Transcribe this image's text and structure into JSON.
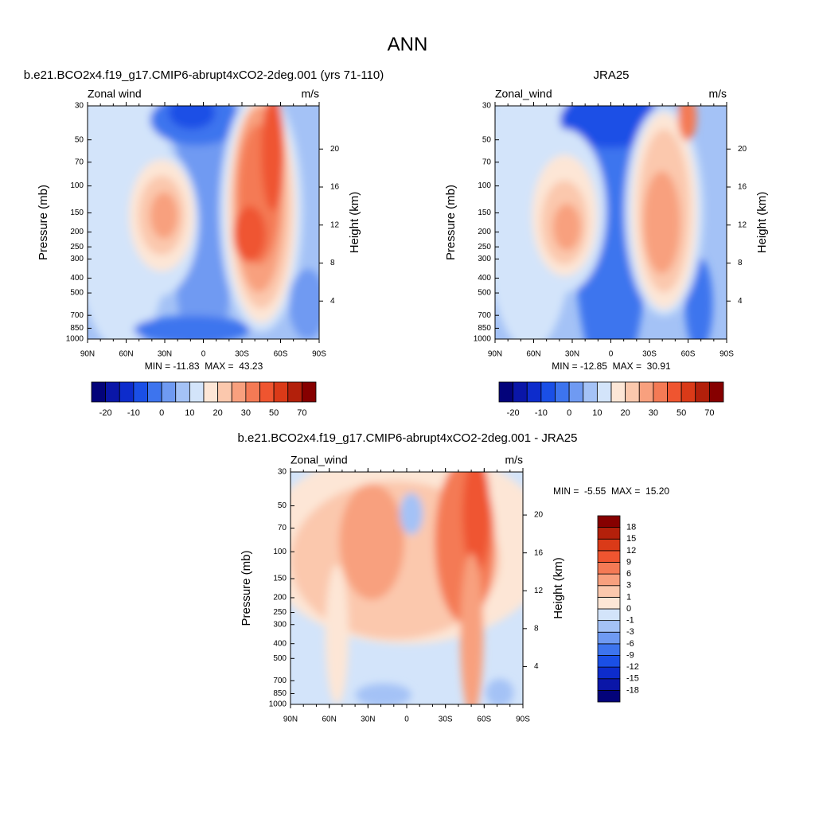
{
  "title": "ANN",
  "chart_data": [
    {
      "type": "contour",
      "title": "b.e21.BCO2x4.f19_g17.CMIP6-abrupt4xCO2-2deg.001 (yrs 71-110)",
      "left_title": "Zonal wind",
      "units": "m/s",
      "ylabel": "Pressure (mb)",
      "y2label": "Height (km)",
      "log_y": true,
      "ylim": [
        1000,
        30
      ],
      "yticks": [
        30,
        50,
        70,
        100,
        150,
        200,
        250,
        300,
        400,
        500,
        700,
        850,
        1000
      ],
      "y2ticks": [
        4,
        8,
        12,
        16,
        20
      ],
      "xlim": [
        90,
        -90
      ],
      "xticks": [
        {
          "value": 90,
          "label": "90N"
        },
        {
          "value": 60,
          "label": "60N"
        },
        {
          "value": 30,
          "label": "30N"
        },
        0,
        {
          "value": -30,
          "label": "30S"
        },
        {
          "value": -60,
          "label": "60S"
        },
        {
          "value": -90,
          "label": "90S"
        }
      ],
      "stats": "MIN = -11.83  MAX =  43.23",
      "colorbar": {
        "orientation": "horizontal",
        "levels": [
          -20,
          -10,
          0,
          10,
          20,
          30,
          50,
          70
        ],
        "colors": [
          "#03037a",
          "#0a16a8",
          "#0d2ccc",
          "#1a4fe6",
          "#3d74ee",
          "#6f9af2",
          "#a4c2f6",
          "#d3e4fa",
          "#fde6d6",
          "#fbc8ad",
          "#f8a07e",
          "#f47a55",
          "#ef5530",
          "#da3a18",
          "#b3200b",
          "#860000"
        ]
      }
    },
    {
      "type": "contour",
      "title": "JRA25",
      "left_title": "Zonal_wind",
      "units": "m/s",
      "ylabel": "Pressure (mb)",
      "y2label": "Height (km)",
      "log_y": true,
      "ylim": [
        1000,
        30
      ],
      "yticks": [
        30,
        50,
        70,
        100,
        150,
        200,
        250,
        300,
        400,
        500,
        700,
        850,
        1000
      ],
      "y2ticks": [
        4,
        8,
        12,
        16,
        20
      ],
      "xlim": [
        90,
        -90
      ],
      "xticks": [
        {
          "value": 90,
          "label": "90N"
        },
        {
          "value": 60,
          "label": "60N"
        },
        {
          "value": 30,
          "label": "30N"
        },
        0,
        {
          "value": -30,
          "label": "30S"
        },
        {
          "value": -60,
          "label": "60S"
        },
        {
          "value": -90,
          "label": "90S"
        }
      ],
      "stats": "MIN = -12.85  MAX =  30.91",
      "colorbar": {
        "orientation": "horizontal",
        "levels": [
          -20,
          -10,
          0,
          10,
          20,
          30,
          50,
          70
        ],
        "colors": [
          "#03037a",
          "#0a16a8",
          "#0d2ccc",
          "#1a4fe6",
          "#3d74ee",
          "#6f9af2",
          "#a4c2f6",
          "#d3e4fa",
          "#fde6d6",
          "#fbc8ad",
          "#f8a07e",
          "#f47a55",
          "#ef5530",
          "#da3a18",
          "#b3200b",
          "#860000"
        ]
      }
    },
    {
      "type": "contour",
      "title": "b.e21.BCO2x4.f19_g17.CMIP6-abrupt4xCO2-2deg.001 - JRA25",
      "left_title": "Zonal_wind",
      "units": "m/s",
      "ylabel": "Pressure (mb)",
      "y2label": "Height (km)",
      "log_y": true,
      "ylim": [
        1000,
        30
      ],
      "yticks": [
        30,
        50,
        70,
        100,
        150,
        200,
        250,
        300,
        400,
        500,
        700,
        850,
        1000
      ],
      "y2ticks": [
        4,
        8,
        12,
        16,
        20
      ],
      "xlim": [
        90,
        -90
      ],
      "xticks": [
        {
          "value": 90,
          "label": "90N"
        },
        {
          "value": 60,
          "label": "60N"
        },
        {
          "value": 30,
          "label": "30N"
        },
        0,
        {
          "value": -30,
          "label": "30S"
        },
        {
          "value": -60,
          "label": "60S"
        },
        {
          "value": -90,
          "label": "90S"
        }
      ],
      "stats": "MIN =  -5.55  MAX =  15.20",
      "colorbar": {
        "orientation": "vertical",
        "levels": [
          -18,
          -15,
          -12,
          -9,
          -6,
          -3,
          -1,
          0,
          1,
          3,
          6,
          9,
          12,
          15,
          18
        ],
        "colors": [
          "#03037a",
          "#0a16a8",
          "#0d2ccc",
          "#1a4fe6",
          "#3d74ee",
          "#6f9af2",
          "#a4c2f6",
          "#d3e4fa",
          "#fde6d6",
          "#fbc8ad",
          "#f8a07e",
          "#f47a55",
          "#ef5530",
          "#da3a18",
          "#b3200b",
          "#860000"
        ]
      }
    }
  ]
}
